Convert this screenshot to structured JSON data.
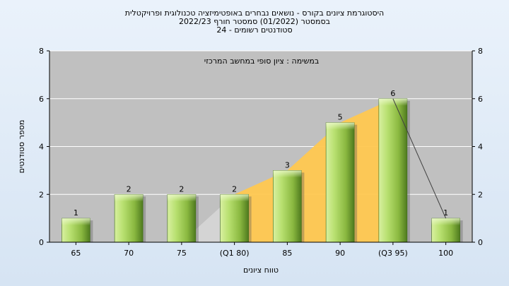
{
  "chart_data": {
    "type": "bar",
    "title_lines": [
      "היסטוגרמת ציונים בקורס - נושאים נבחרים באופטימיזציה טכנולוגית ופרויקטלית",
      "בסמסטר  (01/2022)  סמסטר חורף 2022/23",
      "סטודנטים רשומים - 24"
    ],
    "annotation": "במשימה : ציון סופי במחשב המרכזי",
    "categories": [
      "65",
      "70",
      "75",
      "(Q1 80)",
      "85",
      "90",
      "(Q3 95)",
      "100"
    ],
    "values": [
      1,
      2,
      2,
      2,
      3,
      5,
      6,
      1
    ],
    "xlabel": "טווח ציונים",
    "ylabel": "מספר סטודנטים",
    "ylim": [
      0,
      8
    ],
    "yticks": [
      0,
      2,
      4,
      6,
      8
    ],
    "grid": true,
    "colors": {
      "plot_bg": "#c0c0c0",
      "bar_light": "#d8f0a0",
      "bar_mid": "#9cc850",
      "bar_dark": "#4e7a1e",
      "quartile_band": "#ffc850",
      "line": "#404040"
    }
  }
}
